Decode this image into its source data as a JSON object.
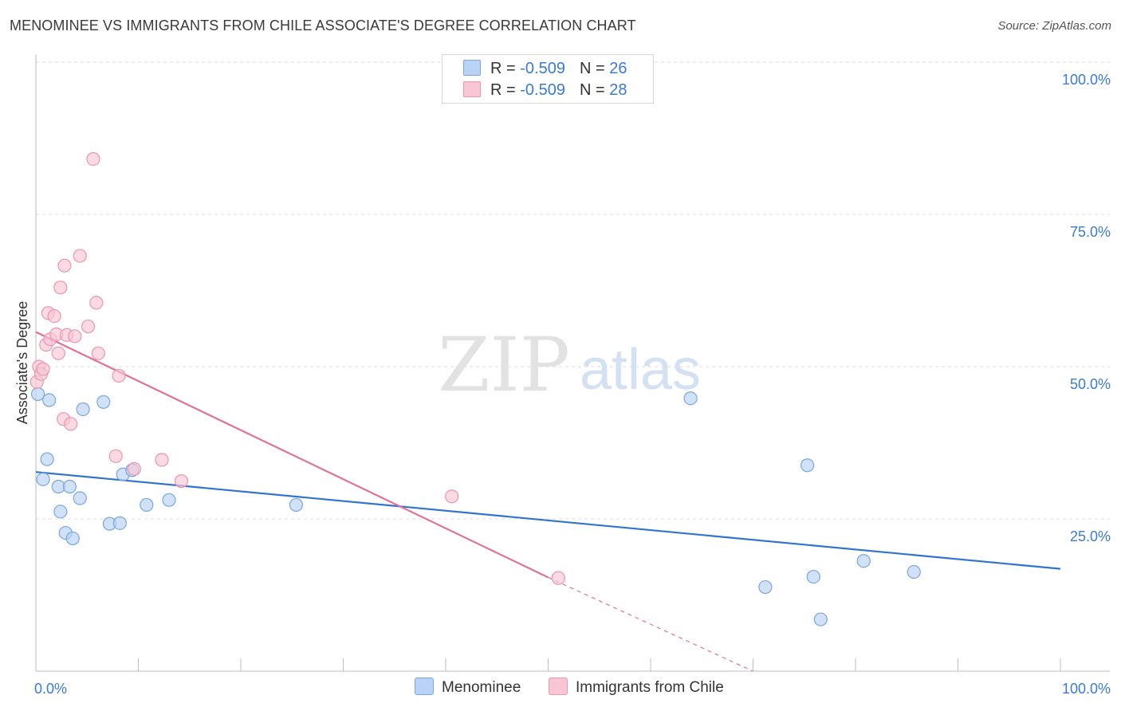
{
  "header": {
    "title": "MENOMINEE VS IMMIGRANTS FROM CHILE ASSOCIATE'S DEGREE CORRELATION CHART",
    "source": "Source: ZipAtlas.com"
  },
  "watermark": {
    "zip": "ZIP",
    "atlas": "atlas"
  },
  "legend": {
    "r_label": "R = ",
    "n_label": "N = ",
    "series": [
      {
        "r_value": "-0.509",
        "n_value": "26"
      },
      {
        "r_value": "-0.509",
        "n_value": "28"
      }
    ]
  },
  "colors": {
    "menominee_fill": "#b8d3f5",
    "menominee_stroke": "#7aa6dc",
    "menominee_line": "#2f74d0",
    "chile_fill": "#f9c6d6",
    "chile_stroke": "#eb95b1",
    "chile_line": "#e0719a",
    "axis_label_blue": "#3a7bd5",
    "grid": "#dedede"
  },
  "chart_data": {
    "type": "scatter",
    "ylabel": "Associate's Degree",
    "xlim": [
      0,
      100
    ],
    "ylim": [
      0,
      100
    ],
    "x_tick_labels": {
      "left": "0.0%",
      "right": "100.0%"
    },
    "y_ticks": [
      {
        "value": 100,
        "label": "100.0%"
      },
      {
        "value": 75,
        "label": "75.0%"
      },
      {
        "value": 50,
        "label": "50.0%"
      },
      {
        "value": 25,
        "label": "25.0%"
      }
    ],
    "series": [
      {
        "name": "Menominee",
        "points": [
          [
            0.2,
            45.5
          ],
          [
            1.3,
            44.5
          ],
          [
            0.7,
            31.5
          ],
          [
            1.1,
            34.8
          ],
          [
            2.2,
            30.3
          ],
          [
            3.3,
            30.3
          ],
          [
            2.4,
            26.2
          ],
          [
            2.9,
            22.7
          ],
          [
            3.6,
            21.8
          ],
          [
            4.3,
            28.4
          ],
          [
            4.6,
            43.0
          ],
          [
            6.6,
            44.2
          ],
          [
            7.2,
            24.2
          ],
          [
            8.2,
            24.3
          ],
          [
            8.5,
            32.3
          ],
          [
            9.4,
            33.0
          ],
          [
            10.8,
            27.3
          ],
          [
            13.0,
            28.1
          ],
          [
            25.4,
            27.3
          ],
          [
            63.9,
            44.8
          ],
          [
            71.2,
            13.8
          ],
          [
            75.3,
            33.8
          ],
          [
            75.9,
            15.5
          ],
          [
            76.6,
            8.5
          ],
          [
            80.8,
            18.1
          ],
          [
            85.7,
            16.3
          ]
        ],
        "trend": {
          "x_start": 0,
          "y_start": 32.7,
          "x_end": 100,
          "y_end": 16.8
        }
      },
      {
        "name": "Immigrants from Chile",
        "points": [
          [
            0.1,
            47.5
          ],
          [
            0.3,
            50.0
          ],
          [
            0.5,
            48.8
          ],
          [
            0.7,
            49.6
          ],
          [
            1.0,
            53.6
          ],
          [
            1.2,
            58.8
          ],
          [
            1.4,
            54.5
          ],
          [
            1.8,
            58.3
          ],
          [
            2.0,
            55.3
          ],
          [
            2.2,
            52.2
          ],
          [
            2.4,
            63.0
          ],
          [
            2.7,
            41.4
          ],
          [
            2.8,
            66.6
          ],
          [
            3.0,
            55.2
          ],
          [
            3.4,
            40.6
          ],
          [
            3.8,
            55.0
          ],
          [
            4.3,
            68.2
          ],
          [
            5.1,
            56.6
          ],
          [
            5.6,
            84.1
          ],
          [
            5.9,
            60.5
          ],
          [
            6.1,
            52.2
          ],
          [
            7.8,
            35.3
          ],
          [
            8.1,
            48.5
          ],
          [
            9.6,
            33.2
          ],
          [
            12.3,
            34.7
          ],
          [
            14.2,
            31.2
          ],
          [
            40.6,
            28.7
          ],
          [
            51.0,
            15.3
          ]
        ],
        "trend": {
          "x_start": 0,
          "y_start": 55.7,
          "x_end": 50,
          "y_end": 15.4,
          "dash_x_end": 70,
          "dash_y_end": -0.9
        }
      }
    ]
  }
}
